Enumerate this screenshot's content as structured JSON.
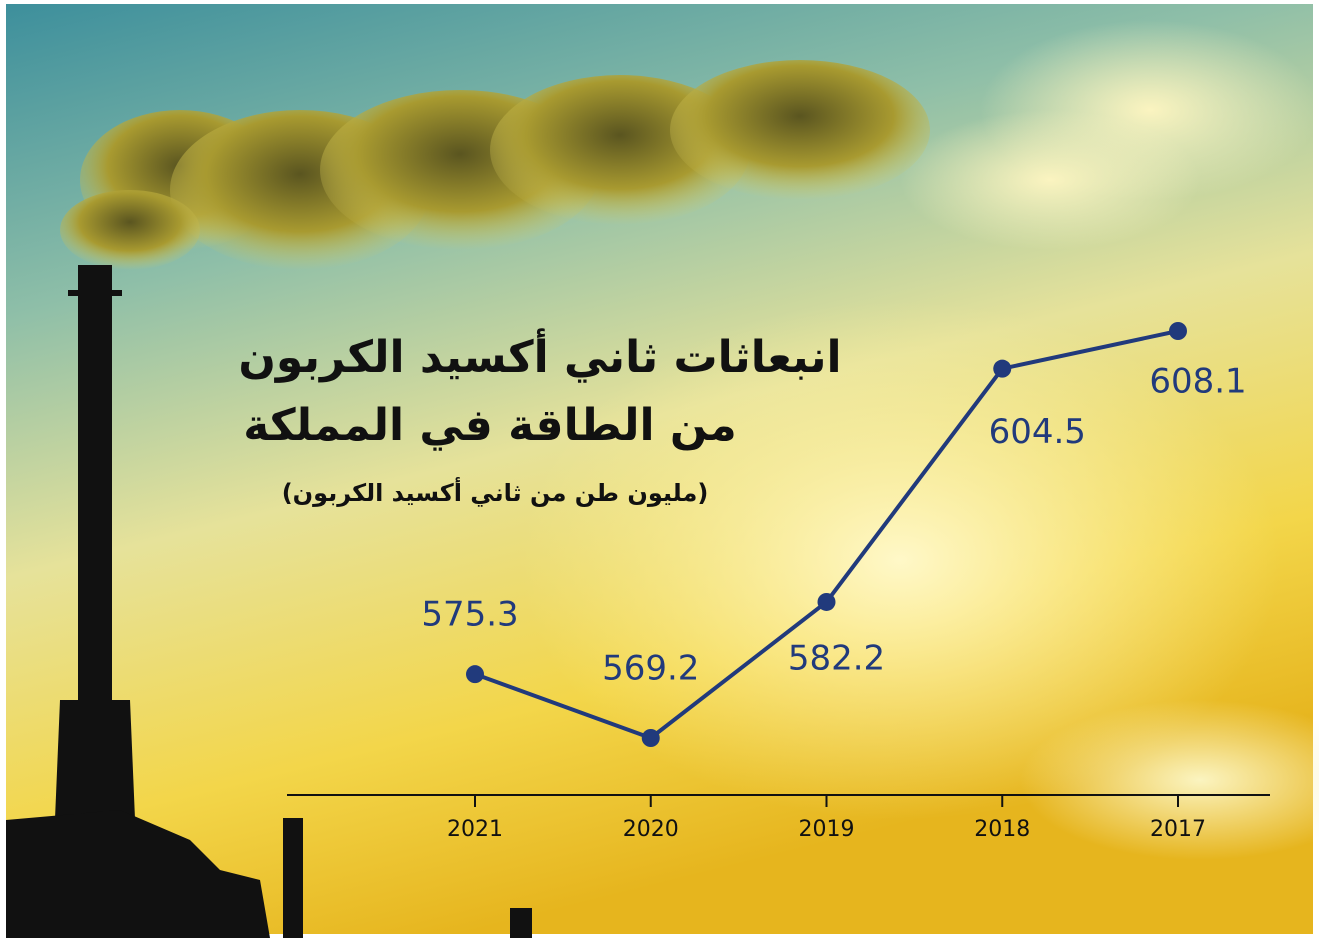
{
  "chart_data": {
    "type": "line",
    "title": [
      "انبعاثات ثاني أكسيد الكربون",
      "من الطاقة في المملكة"
    ],
    "subtitle": "(مليون طن من ثاني أكسيد الكربون)",
    "categories": [
      "2021",
      "2020",
      "2019",
      "2018",
      "2017"
    ],
    "values": [
      575.3,
      569.2,
      582.2,
      604.5,
      608.1
    ],
    "color": "#213a7c"
  }
}
